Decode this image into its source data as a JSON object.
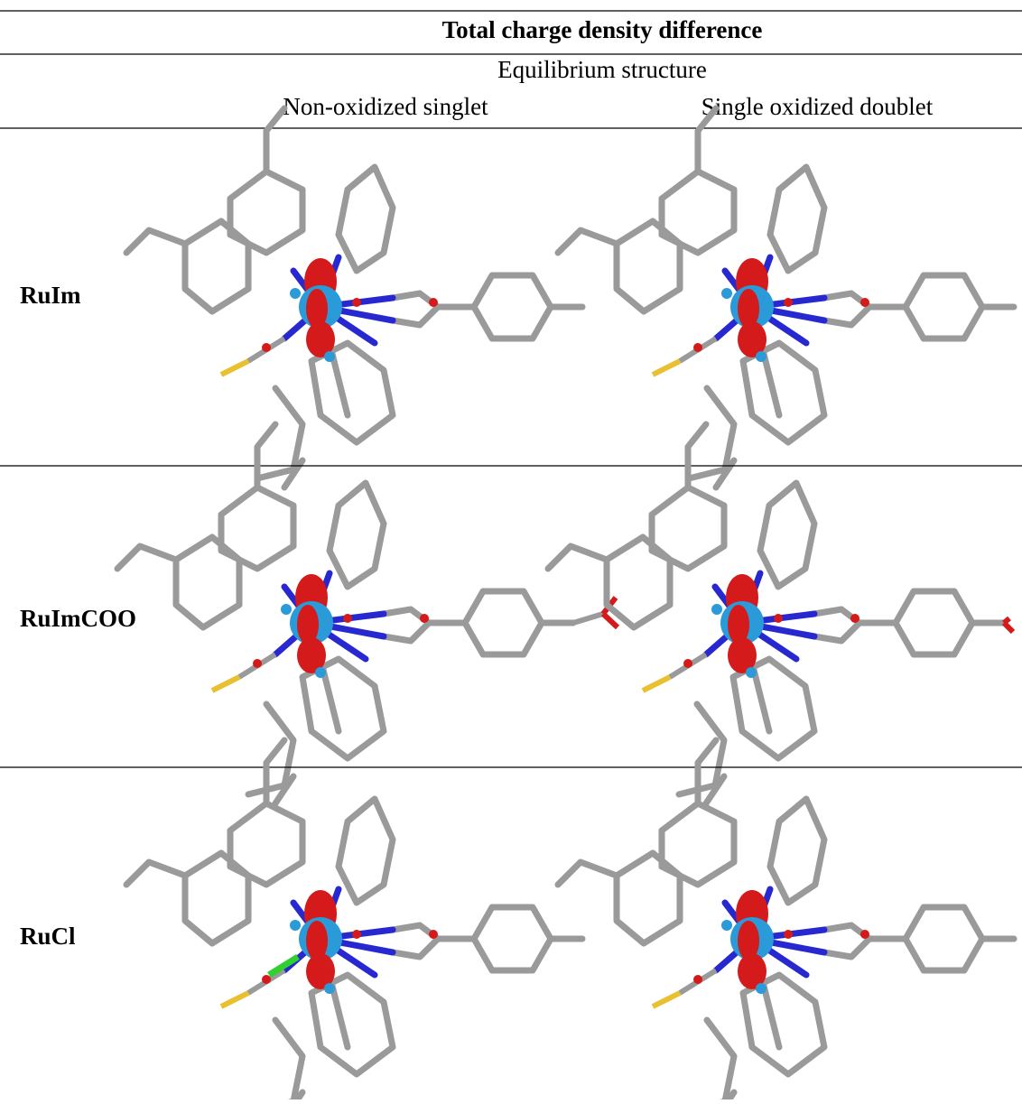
{
  "header": {
    "title": "Total charge density difference",
    "subtitle": "Equilibrium structure",
    "columns": [
      "Non-oxidized singlet",
      "Single oxidized doublet"
    ]
  },
  "rows": [
    {
      "label": "RuIm"
    },
    {
      "label": "RuImCOO"
    },
    {
      "label": "RuCl"
    }
  ]
}
